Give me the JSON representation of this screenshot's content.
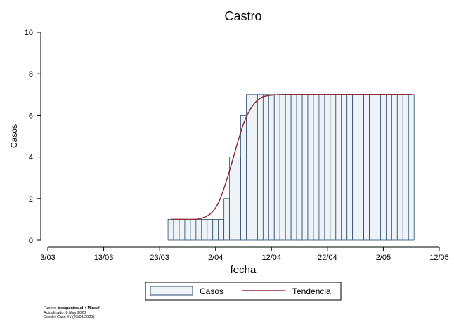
{
  "chart_data": {
    "type": "bar",
    "title": "Castro",
    "xlabel": "fecha",
    "ylabel": "Casos",
    "ylim": [
      0,
      10
    ],
    "yticks": [
      0,
      2,
      4,
      6,
      8,
      10
    ],
    "xlim": [
      "2020-03-03",
      "2020-05-12"
    ],
    "xticks": [
      {
        "date": "2020-03-03",
        "label": "3/03"
      },
      {
        "date": "2020-03-13",
        "label": "13/03"
      },
      {
        "date": "2020-03-23",
        "label": "23/03"
      },
      {
        "date": "2020-04-02",
        "label": "2/04"
      },
      {
        "date": "2020-04-12",
        "label": "12/04"
      },
      {
        "date": "2020-04-22",
        "label": "22/04"
      },
      {
        "date": "2020-05-02",
        "label": "2/05"
      },
      {
        "date": "2020-05-12",
        "label": "12/05"
      }
    ],
    "grid": false,
    "legend_position": "bottom",
    "colors": {
      "bar_fill": "#eef3f7",
      "bar_stroke": "#2c4a6e",
      "trend": "#8b2e35"
    },
    "series": [
      {
        "name": "Casos",
        "type": "bar",
        "x": [
          "2020-03-25",
          "2020-03-26",
          "2020-03-27",
          "2020-03-28",
          "2020-03-29",
          "2020-03-30",
          "2020-03-31",
          "2020-04-01",
          "2020-04-02",
          "2020-04-03",
          "2020-04-04",
          "2020-04-05",
          "2020-04-06",
          "2020-04-07",
          "2020-04-08",
          "2020-04-09",
          "2020-04-10",
          "2020-04-11",
          "2020-04-12",
          "2020-04-13",
          "2020-04-14",
          "2020-04-15",
          "2020-04-16",
          "2020-04-17",
          "2020-04-18",
          "2020-04-19",
          "2020-04-20",
          "2020-04-21",
          "2020-04-22",
          "2020-04-23",
          "2020-04-24",
          "2020-04-25",
          "2020-04-26",
          "2020-04-27",
          "2020-04-28",
          "2020-04-29",
          "2020-04-30",
          "2020-05-01",
          "2020-05-02",
          "2020-05-03",
          "2020-05-04",
          "2020-05-05",
          "2020-05-06",
          "2020-05-07"
        ],
        "values": [
          1,
          1,
          1,
          1,
          1,
          1,
          1,
          1,
          1,
          1,
          2,
          4,
          4,
          6,
          7,
          7,
          7,
          7,
          7,
          7,
          7,
          7,
          7,
          7,
          7,
          7,
          7,
          7,
          7,
          7,
          7,
          7,
          7,
          7,
          7,
          7,
          7,
          7,
          7,
          7,
          7,
          7,
          7,
          7
        ]
      },
      {
        "name": "Tendencia",
        "type": "line",
        "x": [
          "2020-03-25",
          "2020-03-27",
          "2020-03-29",
          "2020-03-30",
          "2020-03-31",
          "2020-04-01",
          "2020-04-02",
          "2020-04-03",
          "2020-04-04",
          "2020-04-05",
          "2020-04-06",
          "2020-04-07",
          "2020-04-08",
          "2020-04-09",
          "2020-04-10",
          "2020-04-11",
          "2020-04-12",
          "2020-04-13",
          "2020-04-14",
          "2020-04-16",
          "2020-04-20",
          "2020-04-25",
          "2020-05-01",
          "2020-05-07"
        ],
        "values": [
          1,
          1,
          1,
          1.02,
          1.1,
          1.25,
          1.55,
          2.1,
          2.9,
          3.8,
          4.75,
          5.6,
          6.2,
          6.6,
          6.83,
          6.93,
          6.97,
          6.99,
          7,
          7,
          7,
          7,
          7,
          7
        ]
      }
    ]
  },
  "source": {
    "prefix": "Fuente: ",
    "bold": "tresquintos.cl + Minsal",
    "updated": "Actualizado: 8 May 2020",
    "since": "Desde: Caso #1  (03/03/2020)"
  }
}
